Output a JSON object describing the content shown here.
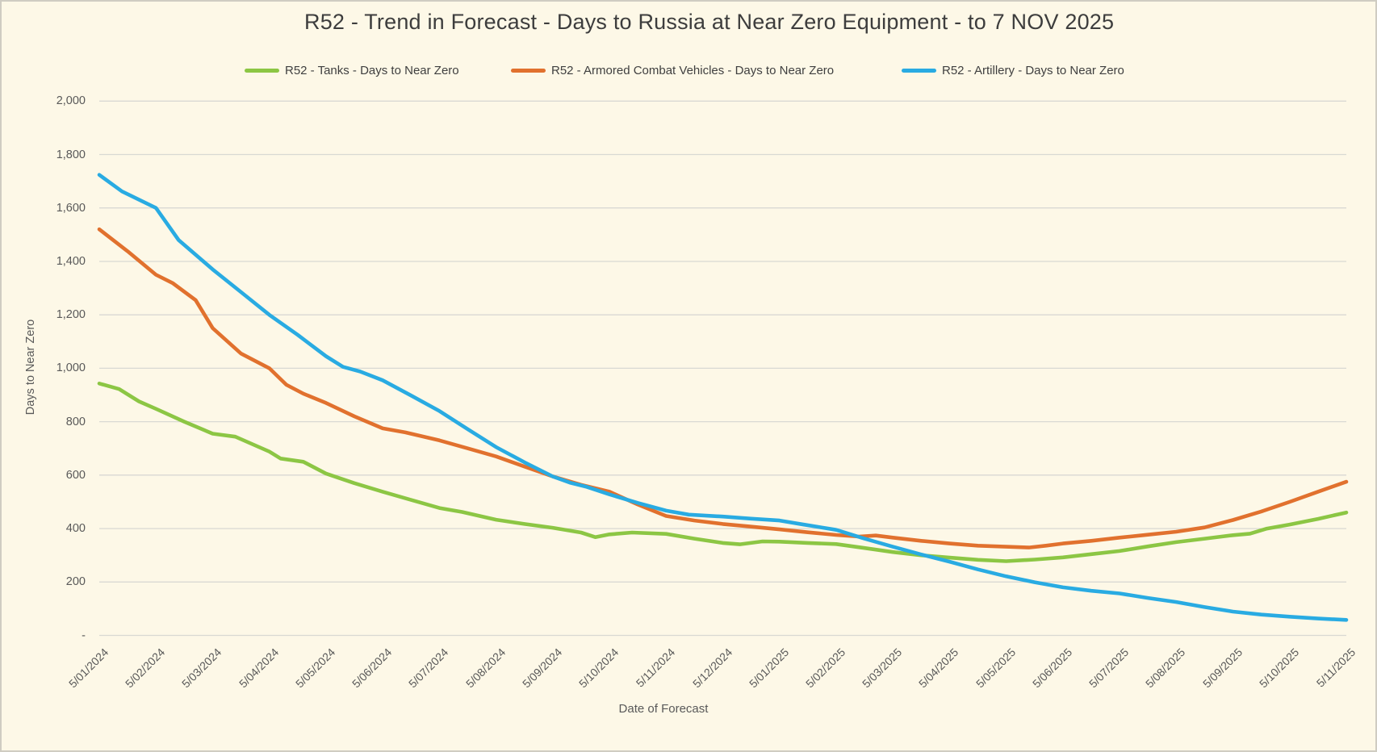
{
  "chart": {
    "title": "R52 - Trend in Forecast - Days to Russia at Near Zero Equipment - to 7 NOV 2025",
    "background_color": "#FDF8E7",
    "gridline_color": "#D9D9D3",
    "text_color": "#595959",
    "legend": [
      {
        "key": "tanks",
        "label": "R52 - Tanks - Days to Near Zero",
        "color": "#8CC644"
      },
      {
        "key": "acv",
        "label": "R52 - Armored Combat Vehicles - Days to Near Zero",
        "color": "#E1712E"
      },
      {
        "key": "artillery",
        "label": "R52 - Artillery - Days to Near Zero",
        "color": "#29ABE2"
      }
    ],
    "y_axis": {
      "title": "Days to Near Zero",
      "ticks": [
        {
          "value": 2000,
          "label": "2,000"
        },
        {
          "value": 1800,
          "label": "1,800"
        },
        {
          "value": 1600,
          "label": "1,600"
        },
        {
          "value": 1400,
          "label": "1,400"
        },
        {
          "value": 1200,
          "label": "1,200"
        },
        {
          "value": 1000,
          "label": "1,000"
        },
        {
          "value": 800,
          "label": "800"
        },
        {
          "value": 600,
          "label": "600"
        },
        {
          "value": 400,
          "label": "400"
        },
        {
          "value": 200,
          "label": "200"
        },
        {
          "value": 0,
          "label": "-"
        }
      ]
    },
    "x_axis": {
      "title": "Date of Forecast"
    }
  },
  "chart_data": {
    "type": "line",
    "title": "R52 - Trend in Forecast - Days to Russia at Near Zero Equipment - to 7 NOV 2025",
    "xlabel": "Date of Forecast",
    "ylabel": "Days to Near Zero",
    "ylim": [
      0,
      2000
    ],
    "y_tick_step": 200,
    "grid": true,
    "legend_position": "top",
    "categories": [
      "5/01/2024",
      "5/02/2024",
      "5/03/2024",
      "5/04/2024",
      "5/05/2024",
      "5/06/2024",
      "5/07/2024",
      "5/08/2024",
      "5/09/2024",
      "5/10/2024",
      "5/11/2024",
      "5/12/2024",
      "5/01/2025",
      "5/02/2025",
      "5/03/2025",
      "5/04/2025",
      "5/05/2025",
      "5/06/2025",
      "5/07/2025",
      "5/08/2025",
      "5/09/2025",
      "5/10/2025",
      "5/11/2025"
    ],
    "series": [
      {
        "key": "tanks",
        "name": "R52 - Tanks - Days to Near Zero",
        "color": "#8CC644",
        "monthly_values": [
          943,
          848,
          755,
          688,
          606,
          538,
          477,
          433,
          403,
          378,
          380,
          346,
          351,
          342,
          312,
          291,
          278,
          292,
          316,
          349,
          375,
          415,
          460
        ],
        "points": [
          [
            0,
            943
          ],
          [
            0.35,
            922
          ],
          [
            0.7,
            876
          ],
          [
            1,
            848
          ],
          [
            1.5,
            800
          ],
          [
            2,
            755
          ],
          [
            2.4,
            744
          ],
          [
            3,
            688
          ],
          [
            3.2,
            662
          ],
          [
            3.6,
            650
          ],
          [
            4,
            606
          ],
          [
            4.5,
            570
          ],
          [
            5,
            538
          ],
          [
            5.5,
            507
          ],
          [
            6,
            477
          ],
          [
            6.4,
            462
          ],
          [
            7,
            433
          ],
          [
            7.5,
            417
          ],
          [
            8,
            403
          ],
          [
            8.5,
            385
          ],
          [
            8.75,
            368
          ],
          [
            9,
            378
          ],
          [
            9.4,
            385
          ],
          [
            10,
            380
          ],
          [
            10.5,
            362
          ],
          [
            11,
            346
          ],
          [
            11.3,
            341
          ],
          [
            11.7,
            352
          ],
          [
            12,
            351
          ],
          [
            12.5,
            346
          ],
          [
            13,
            342
          ],
          [
            13.5,
            327
          ],
          [
            14,
            312
          ],
          [
            14.5,
            300
          ],
          [
            15,
            291
          ],
          [
            15.5,
            283
          ],
          [
            16,
            278
          ],
          [
            16.5,
            284
          ],
          [
            17,
            292
          ],
          [
            17.5,
            304
          ],
          [
            18,
            316
          ],
          [
            18.5,
            333
          ],
          [
            19,
            349
          ],
          [
            19.5,
            362
          ],
          [
            20,
            375
          ],
          [
            20.3,
            381
          ],
          [
            20.6,
            400
          ],
          [
            21,
            415
          ],
          [
            21.5,
            436
          ],
          [
            22,
            460
          ]
        ]
      },
      {
        "key": "acv",
        "name": "R52 - Armored Combat Vehicles - Days to Near Zero",
        "color": "#E1712E",
        "monthly_values": [
          1520,
          1350,
          1150,
          1000,
          870,
          775,
          730,
          670,
          595,
          538,
          447,
          417,
          397,
          376,
          366,
          344,
          332,
          344,
          366,
          388,
          432,
          500,
          575
        ],
        "points": [
          [
            0,
            1520
          ],
          [
            0.5,
            1438
          ],
          [
            1,
            1350
          ],
          [
            1.3,
            1318
          ],
          [
            1.7,
            1255
          ],
          [
            2,
            1150
          ],
          [
            2.5,
            1055
          ],
          [
            3,
            1000
          ],
          [
            3.3,
            938
          ],
          [
            3.6,
            905
          ],
          [
            4,
            870
          ],
          [
            4.5,
            820
          ],
          [
            5,
            775
          ],
          [
            5.4,
            760
          ],
          [
            6,
            730
          ],
          [
            6.5,
            700
          ],
          [
            7,
            670
          ],
          [
            7.5,
            632
          ],
          [
            8,
            595
          ],
          [
            8.5,
            564
          ],
          [
            9,
            538
          ],
          [
            9.5,
            490
          ],
          [
            10,
            447
          ],
          [
            10.5,
            430
          ],
          [
            11,
            417
          ],
          [
            11.5,
            407
          ],
          [
            12,
            397
          ],
          [
            12.5,
            386
          ],
          [
            13,
            376
          ],
          [
            13.4,
            370
          ],
          [
            13.7,
            374
          ],
          [
            14,
            366
          ],
          [
            14.5,
            354
          ],
          [
            15,
            344
          ],
          [
            15.5,
            336
          ],
          [
            16,
            332
          ],
          [
            16.4,
            329
          ],
          [
            16.7,
            336
          ],
          [
            17,
            344
          ],
          [
            17.5,
            354
          ],
          [
            18,
            366
          ],
          [
            18.5,
            377
          ],
          [
            19,
            388
          ],
          [
            19.5,
            404
          ],
          [
            20,
            432
          ],
          [
            20.5,
            464
          ],
          [
            21,
            500
          ],
          [
            21.5,
            538
          ],
          [
            22,
            575
          ]
        ]
      },
      {
        "key": "artillery",
        "name": "R52 - Artillery - Days to Near Zero",
        "color": "#29ABE2",
        "monthly_values": [
          1724,
          1600,
          1370,
          1200,
          1045,
          955,
          840,
          705,
          595,
          528,
          467,
          445,
          430,
          395,
          332,
          276,
          221,
          180,
          157,
          125,
          89,
          70,
          58
        ],
        "points": [
          [
            0,
            1724
          ],
          [
            0.4,
            1662
          ],
          [
            1,
            1600
          ],
          [
            1.4,
            1480
          ],
          [
            2,
            1370
          ],
          [
            2.5,
            1285
          ],
          [
            3,
            1200
          ],
          [
            3.5,
            1125
          ],
          [
            4,
            1045
          ],
          [
            4.3,
            1005
          ],
          [
            4.6,
            988
          ],
          [
            5,
            955
          ],
          [
            5.5,
            898
          ],
          [
            6,
            840
          ],
          [
            6.5,
            772
          ],
          [
            7,
            705
          ],
          [
            7.5,
            648
          ],
          [
            8,
            595
          ],
          [
            8.3,
            572
          ],
          [
            8.6,
            556
          ],
          [
            9,
            528
          ],
          [
            9.5,
            496
          ],
          [
            10,
            467
          ],
          [
            10.4,
            452
          ],
          [
            11,
            445
          ],
          [
            11.5,
            437
          ],
          [
            12,
            430
          ],
          [
            12.4,
            416
          ],
          [
            13,
            395
          ],
          [
            13.5,
            362
          ],
          [
            14,
            332
          ],
          [
            14.5,
            303
          ],
          [
            15,
            276
          ],
          [
            15.5,
            247
          ],
          [
            16,
            221
          ],
          [
            16.5,
            199
          ],
          [
            17,
            180
          ],
          [
            17.5,
            167
          ],
          [
            18,
            157
          ],
          [
            18.5,
            140
          ],
          [
            19,
            125
          ],
          [
            19.5,
            106
          ],
          [
            20,
            89
          ],
          [
            20.5,
            78
          ],
          [
            21,
            70
          ],
          [
            21.5,
            63
          ],
          [
            22,
            58
          ]
        ]
      }
    ]
  }
}
